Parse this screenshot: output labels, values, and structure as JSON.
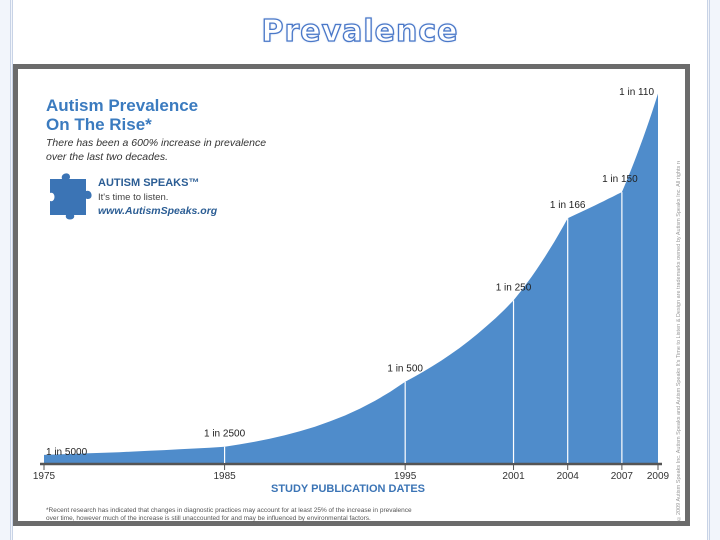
{
  "slide": {
    "title": "Prevalence"
  },
  "panel": {
    "heading_line1": "Autism Prevalence",
    "heading_line2": "On The Rise*",
    "subheading_line1": "There has been a 600% increase in prevalence",
    "subheading_line2": "over the last two decades.",
    "logo": {
      "name": "AUTISM SPEAKS™",
      "tagline": "It's time to listen.",
      "url": "www.AutismSpeaks.org"
    },
    "copyright": "©2009 Autism Speaks Inc. Autism Speaks and Autism Speaks It's Time to Listen & Design are trademarks owned by Autism Speaks Inc. All rights reserved.",
    "footnote_line1": "*Recent research has indicated that changes in diagnostic practices may account for at least 25% of the increase in prevalence",
    "footnote_line2": "over time, however much of the increase is still unaccounted for and may be influenced by environmental factors."
  },
  "chart_data": {
    "type": "area",
    "xlabel": "STUDY PUBLICATION DATES",
    "ylabel": "",
    "x": [
      1975,
      1985,
      1995,
      2001,
      2004,
      2007,
      2009
    ],
    "tick_labels": [
      "1975",
      "1985",
      "1995",
      "2001",
      "2004",
      "2007",
      "2009"
    ],
    "values": [
      0.0002,
      0.0004,
      0.002,
      0.004,
      0.006024,
      0.006667,
      0.009091
    ],
    "point_labels": [
      "1 in 5000",
      "1 in 2500",
      "1 in 500",
      "1 in 250",
      "1 in 166",
      "1 in 150",
      "1 in 110"
    ],
    "fill_color": "#4f8ccb",
    "line_color": "#ffffff"
  }
}
